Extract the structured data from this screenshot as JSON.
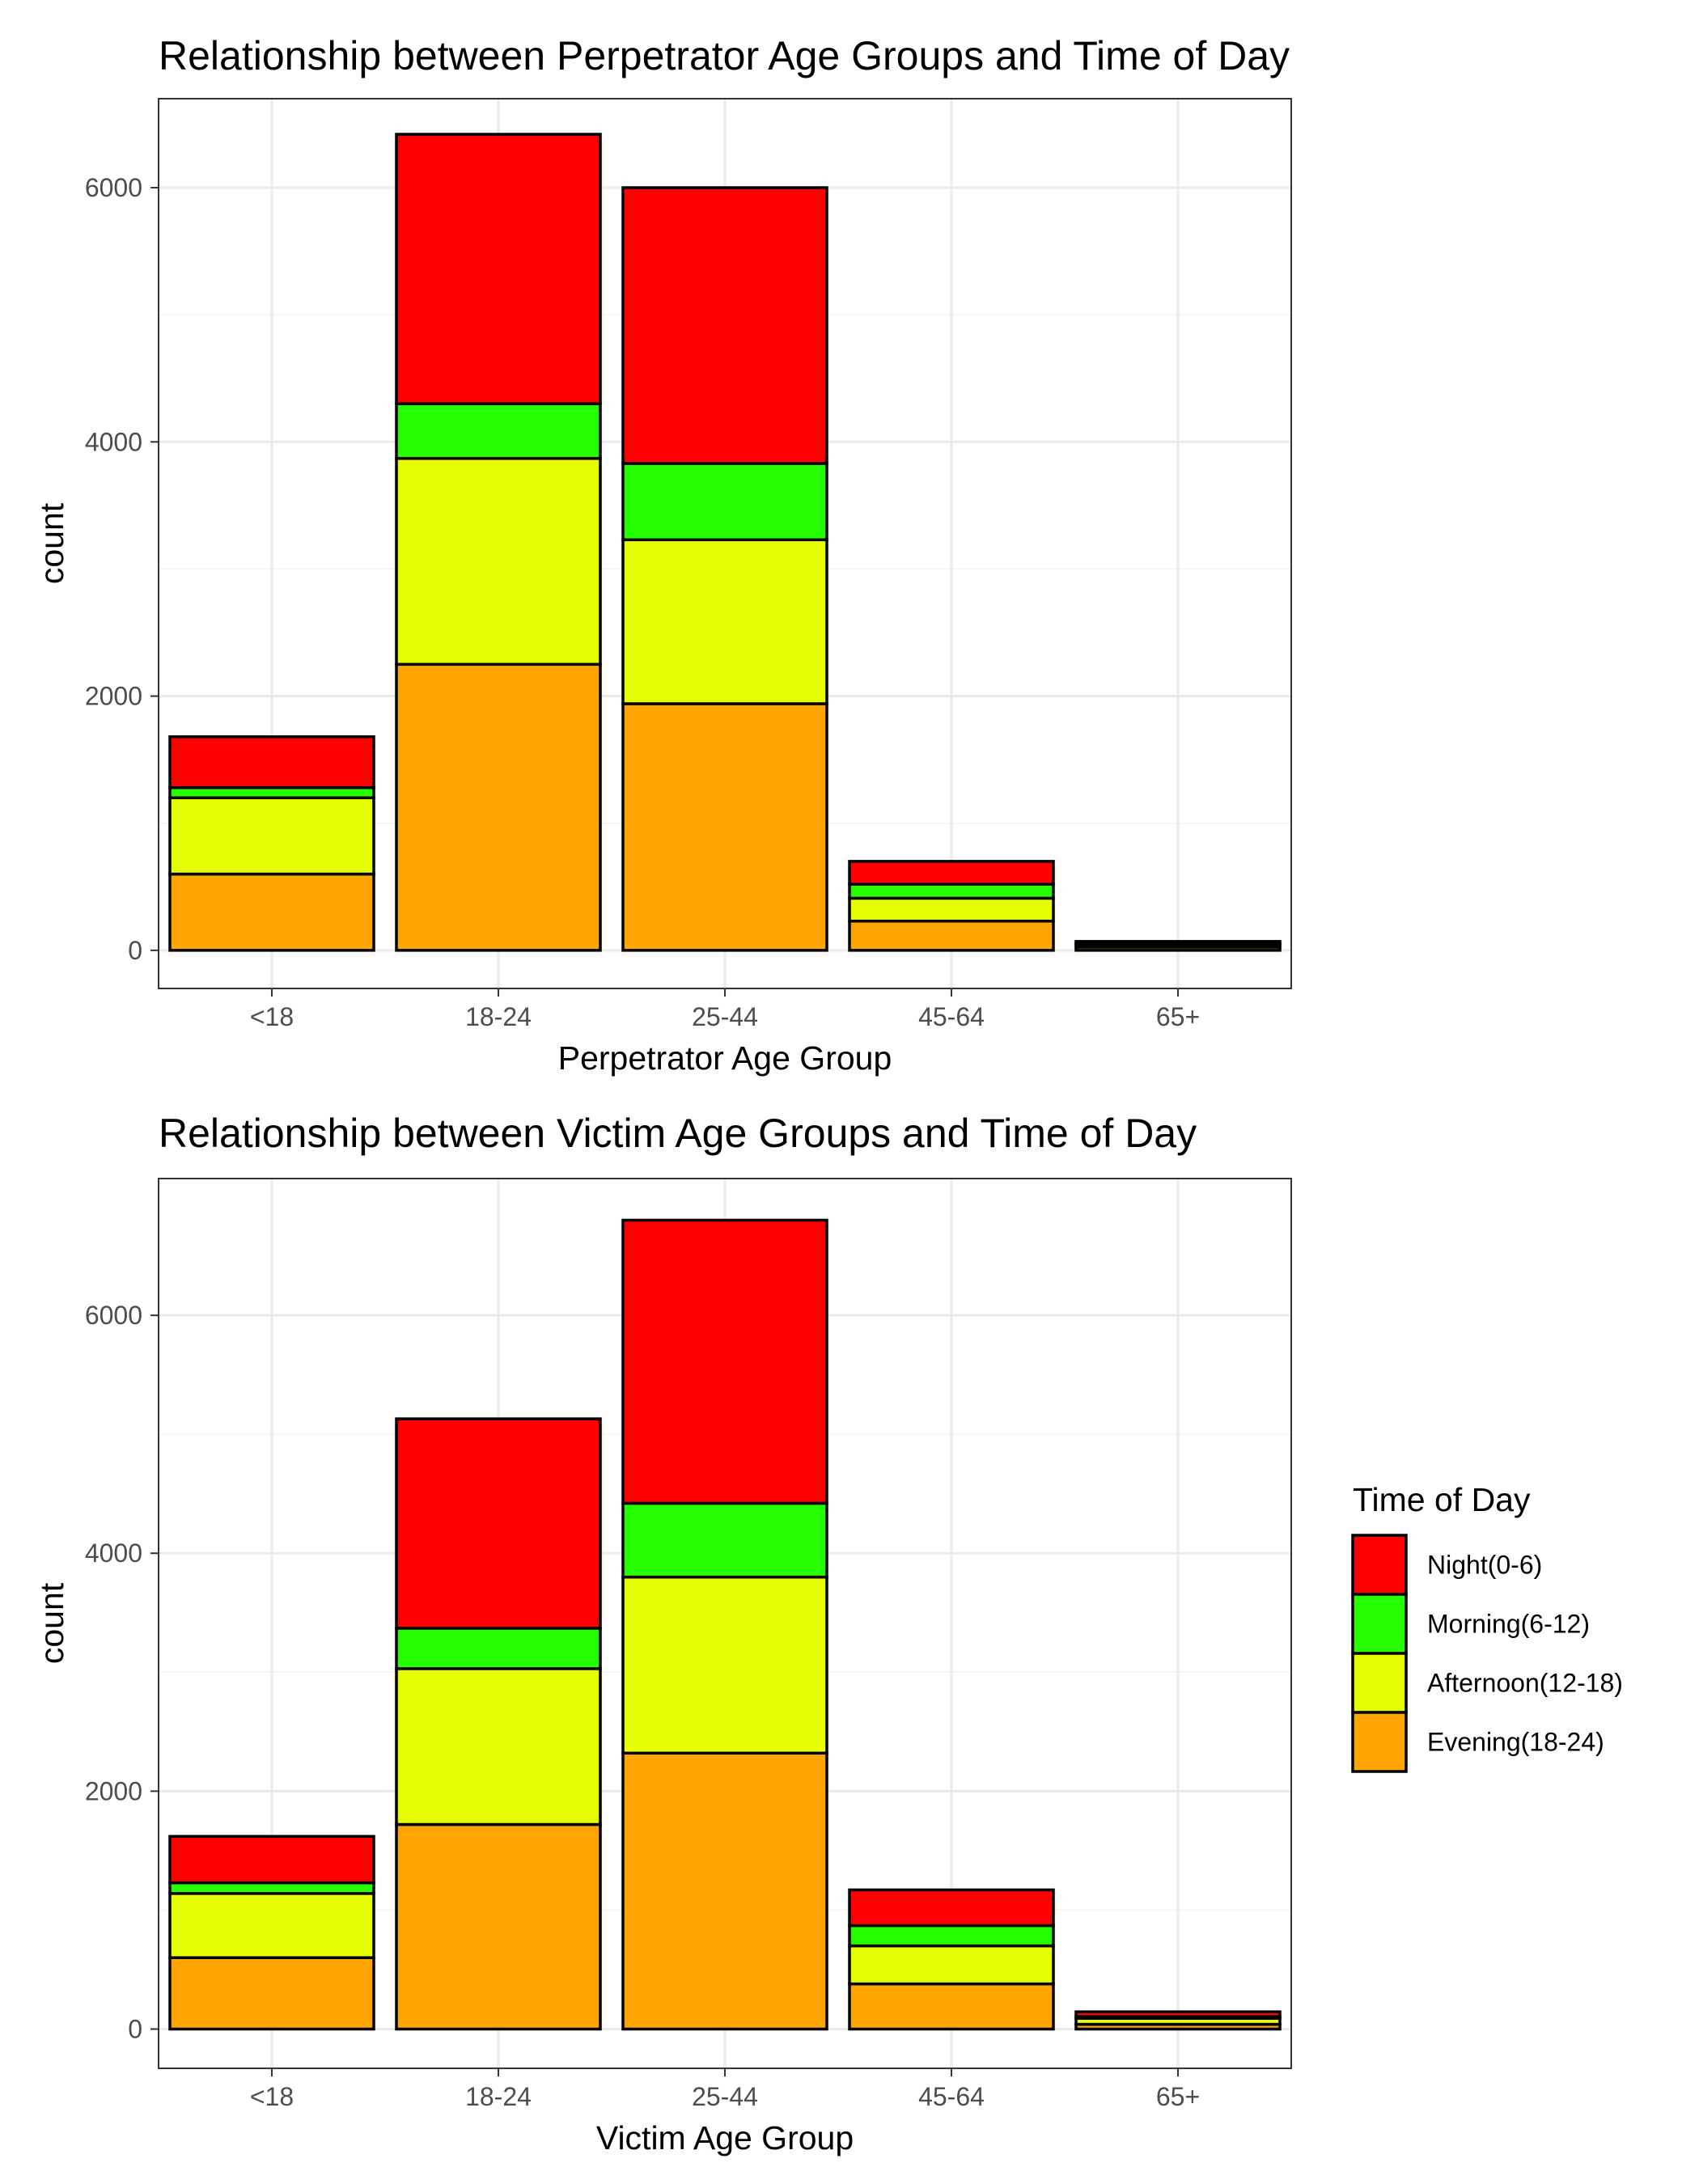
{
  "chart_data": [
    {
      "type": "bar",
      "stacked": true,
      "title": "Relationship between Perpetrator Age Groups and Time of Day",
      "xlabel": "Perpetrator Age Group",
      "ylabel": "count",
      "categories": [
        "<18",
        "18-24",
        "25-44",
        "45-64",
        "65+"
      ],
      "ylim": [
        -300,
        6700
      ],
      "yticks": [
        0,
        2000,
        4000,
        6000
      ],
      "grid": true,
      "series": [
        {
          "name": "Evening(18-24)",
          "color": "#ffa500",
          "values": [
            600,
            2250,
            1940,
            230,
            25
          ]
        },
        {
          "name": "Afternoon(12-18)",
          "color": "#e6ff00",
          "values": [
            600,
            1620,
            1290,
            180,
            20
          ]
        },
        {
          "name": "Morning(6-12)",
          "color": "#26ff00",
          "values": [
            80,
            430,
            600,
            110,
            10
          ]
        },
        {
          "name": "Night(0-6)",
          "color": "#ff0000",
          "values": [
            400,
            2120,
            2170,
            180,
            15
          ]
        }
      ]
    },
    {
      "type": "bar",
      "stacked": true,
      "title": "Relationship between Victim Age Groups and Time of Day",
      "xlabel": "Victim Age Group",
      "ylabel": "count",
      "categories": [
        "<18",
        "18-24",
        "25-44",
        "45-64",
        "65+"
      ],
      "ylim": [
        -330,
        7150
      ],
      "yticks": [
        0,
        2000,
        4000,
        6000
      ],
      "grid": true,
      "series": [
        {
          "name": "Evening(18-24)",
          "color": "#ffa500",
          "values": [
            600,
            1720,
            2320,
            380,
            40
          ]
        },
        {
          "name": "Afternoon(12-18)",
          "color": "#e6ff00",
          "values": [
            540,
            1310,
            1480,
            320,
            50
          ]
        },
        {
          "name": "Morning(6-12)",
          "color": "#26ff00",
          "values": [
            90,
            340,
            620,
            170,
            15
          ]
        },
        {
          "name": "Night(0-6)",
          "color": "#ff0000",
          "values": [
            390,
            1760,
            2380,
            300,
            40
          ]
        }
      ]
    }
  ],
  "legend": {
    "title": "Time of Day",
    "placement": "right",
    "items": [
      {
        "label": "Night(0-6)",
        "color": "#ff0000"
      },
      {
        "label": "Morning(6-12)",
        "color": "#26ff00"
      },
      {
        "label": "Afternoon(12-18)",
        "color": "#e6ff00"
      },
      {
        "label": "Evening(18-24)",
        "color": "#ffa500"
      }
    ]
  }
}
